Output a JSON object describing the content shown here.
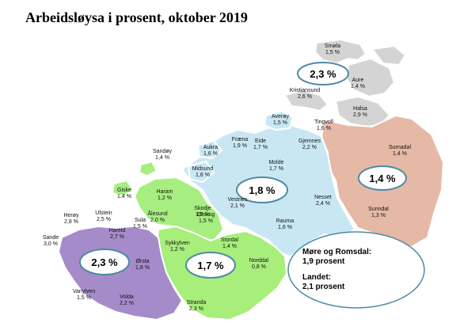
{
  "title": "Arbeidsløysa i prosent, oktober 2019",
  "colors": {
    "north": "#d4d4d4",
    "northeast": "#e6b8a6",
    "central": "#c9e7f3",
    "sunnmore_north": "#a6ee80",
    "sunnmore_south": "#a7ee7b",
    "southwest": "#a58bc9",
    "oval_stroke": "#4e8aa6"
  },
  "region_labels": {
    "north": "2,3 %",
    "northeast": "1,4 %",
    "central": "1,8 %",
    "sunnmore": "1,7 %",
    "southwest": "2,3 %"
  },
  "municipalities": [
    {
      "name": "Smøla",
      "value": "1,5 %"
    },
    {
      "name": "Aure",
      "value": "1,4 %"
    },
    {
      "name": "Kristiansund",
      "value": "2,6 %"
    },
    {
      "name": "Halsa",
      "value": "2,9 %"
    },
    {
      "name": "Averøy",
      "value": "1,5 %"
    },
    {
      "name": "Tingvoll",
      "value": "1,6 %"
    },
    {
      "name": "Surnadal",
      "value": "1,4 %"
    },
    {
      "name": "Sunndal",
      "value": "1,3 %"
    },
    {
      "name": "Nesset",
      "value": "2,4 %"
    },
    {
      "name": "Gjemnes",
      "value": "2,2 %"
    },
    {
      "name": "Eide",
      "value": "1,7 %"
    },
    {
      "name": "Fræna",
      "value": "1,9 %"
    },
    {
      "name": "Molde",
      "value": "1,7 %"
    },
    {
      "name": "Aukra",
      "value": "1,6 %"
    },
    {
      "name": "Midsund",
      "value": "1,6 %"
    },
    {
      "name": "Vestnes",
      "value": "2,1 %"
    },
    {
      "name": "Rauma",
      "value": "1,6 %"
    },
    {
      "name": "Sandøy",
      "value": "1,4 %"
    },
    {
      "name": "Haram",
      "value": "1,2 %"
    },
    {
      "name": "Giske",
      "value": "1,4 %"
    },
    {
      "name": "Skodje",
      "value": "1,3 %"
    },
    {
      "name": "Ålesund",
      "value": "2,0 %"
    },
    {
      "name": "Sula",
      "value": "1,5 %"
    },
    {
      "name": "Ørskog",
      "value": "1,5 %"
    },
    {
      "name": "Stordal",
      "value": "1,4 %"
    },
    {
      "name": "Sykkylven",
      "value": "1,2 %"
    },
    {
      "name": "Norddal",
      "value": "0,8 %"
    },
    {
      "name": "Stranda",
      "value": "2,3 %"
    },
    {
      "name": "Herøy",
      "value": "2,8 %"
    },
    {
      "name": "Ulstein",
      "value": "2,5 %"
    },
    {
      "name": "Hareid",
      "value": "2,7 %"
    },
    {
      "name": "Sande",
      "value": "3,0 %"
    },
    {
      "name": "Ørsta",
      "value": "1,8 %"
    },
    {
      "name": "Vanylven",
      "value": "1,5 %"
    },
    {
      "name": "Volda",
      "value": "2,2 %"
    }
  ],
  "summary": {
    "county_label": "Møre og Romsdal:",
    "county_value": "1,9 prosent",
    "national_label": "Landet:",
    "national_value": "2,1 prosent"
  }
}
